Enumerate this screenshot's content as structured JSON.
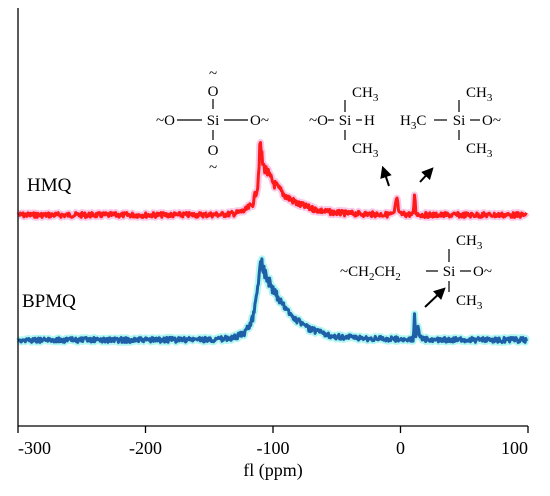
{
  "chart_data": {
    "type": "line",
    "title": "",
    "xlabel": "fl (ppm)",
    "ylabel": "",
    "xlim": [
      -300,
      100
    ],
    "x_reversed": false,
    "xticks": [
      "-300",
      "-200",
      "-100",
      "0",
      "100"
    ],
    "xtick_values": [
      -300,
      -200,
      -100,
      0,
      100
    ],
    "y_axis_visible": false,
    "grid": false,
    "series": [
      {
        "name": "HMQ",
        "color": "#ff1a1a",
        "shadow_color": "#f49ad6",
        "baseline_ppm": 0,
        "points": [
          [
            -300,
            0
          ],
          [
            -250,
            0
          ],
          [
            -200,
            0
          ],
          [
            -160,
            0.2
          ],
          [
            -140,
            0.6
          ],
          [
            -130,
            2
          ],
          [
            -122,
            6
          ],
          [
            -116,
            15
          ],
          [
            -112,
            40
          ],
          [
            -110,
            100
          ],
          [
            -108,
            70
          ],
          [
            -100,
            45
          ],
          [
            -90,
            26
          ],
          [
            -80,
            15
          ],
          [
            -70,
            9
          ],
          [
            -60,
            5
          ],
          [
            -50,
            3
          ],
          [
            -40,
            2
          ],
          [
            -30,
            1.5
          ],
          [
            -20,
            1
          ],
          [
            -10,
            0.5
          ],
          [
            -5,
            1
          ],
          [
            -3,
            25
          ],
          [
            -1,
            1
          ],
          [
            5,
            1
          ],
          [
            10,
            0.5
          ],
          [
            11,
            30
          ],
          [
            12,
            4
          ],
          [
            14,
            0.5
          ],
          [
            20,
            0
          ],
          [
            50,
            0
          ],
          [
            100,
            0
          ]
        ]
      },
      {
        "name": "BPMQ",
        "color": "#1f5fa8",
        "shadow_color": "#6ff0e6",
        "baseline_ppm": 0,
        "points": [
          [
            -300,
            0
          ],
          [
            -250,
            0
          ],
          [
            -200,
            0
          ],
          [
            -160,
            0.4
          ],
          [
            -140,
            1
          ],
          [
            -130,
            3
          ],
          [
            -122,
            8
          ],
          [
            -116,
            25
          ],
          [
            -112,
            60
          ],
          [
            -110,
            100
          ],
          [
            -108,
            85
          ],
          [
            -100,
            58
          ],
          [
            -90,
            36
          ],
          [
            -80,
            22
          ],
          [
            -70,
            12
          ],
          [
            -60,
            7
          ],
          [
            -50,
            4
          ],
          [
            -40,
            3
          ],
          [
            -30,
            2
          ],
          [
            -20,
            1.5
          ],
          [
            -10,
            1
          ],
          [
            0,
            1
          ],
          [
            8,
            0.5
          ],
          [
            10,
            0.5
          ],
          [
            11,
            30
          ],
          [
            12,
            5
          ],
          [
            14,
            18
          ],
          [
            15,
            3
          ],
          [
            20,
            0.5
          ],
          [
            50,
            0
          ],
          [
            100,
            0
          ]
        ]
      }
    ],
    "annotations": {
      "q_unit": {
        "top_bond": "~",
        "top_o": "O",
        "mid_left": "~O",
        "si": "Si",
        "mid_right": "O~",
        "bottom_o": "O",
        "bottom_bond": "~"
      },
      "hsi": {
        "ch3_top": "CH",
        "ch3_top_sub": "3",
        "left": "~O",
        "si": "Si",
        "right": "H",
        "ch3_bottom": "CH",
        "ch3_bottom_sub": "3"
      },
      "m_unit": {
        "ch3_top": "CH",
        "ch3_top_sub": "3",
        "left": "H",
        "left_sub": "3",
        "left_c": "C",
        "si": "Si",
        "right": "O~",
        "ch3_bottom": "CH",
        "ch3_bottom_sub": "3"
      },
      "bp_unit": {
        "ch3_top": "CH",
        "ch3_top_sub": "3",
        "left": "~CH",
        "left_sub1": "2",
        "left_mid": "CH",
        "left_sub2": "2",
        "si": "Si",
        "right": "O~",
        "ch3_bottom": "CH",
        "ch3_bottom_sub": "3"
      }
    }
  }
}
